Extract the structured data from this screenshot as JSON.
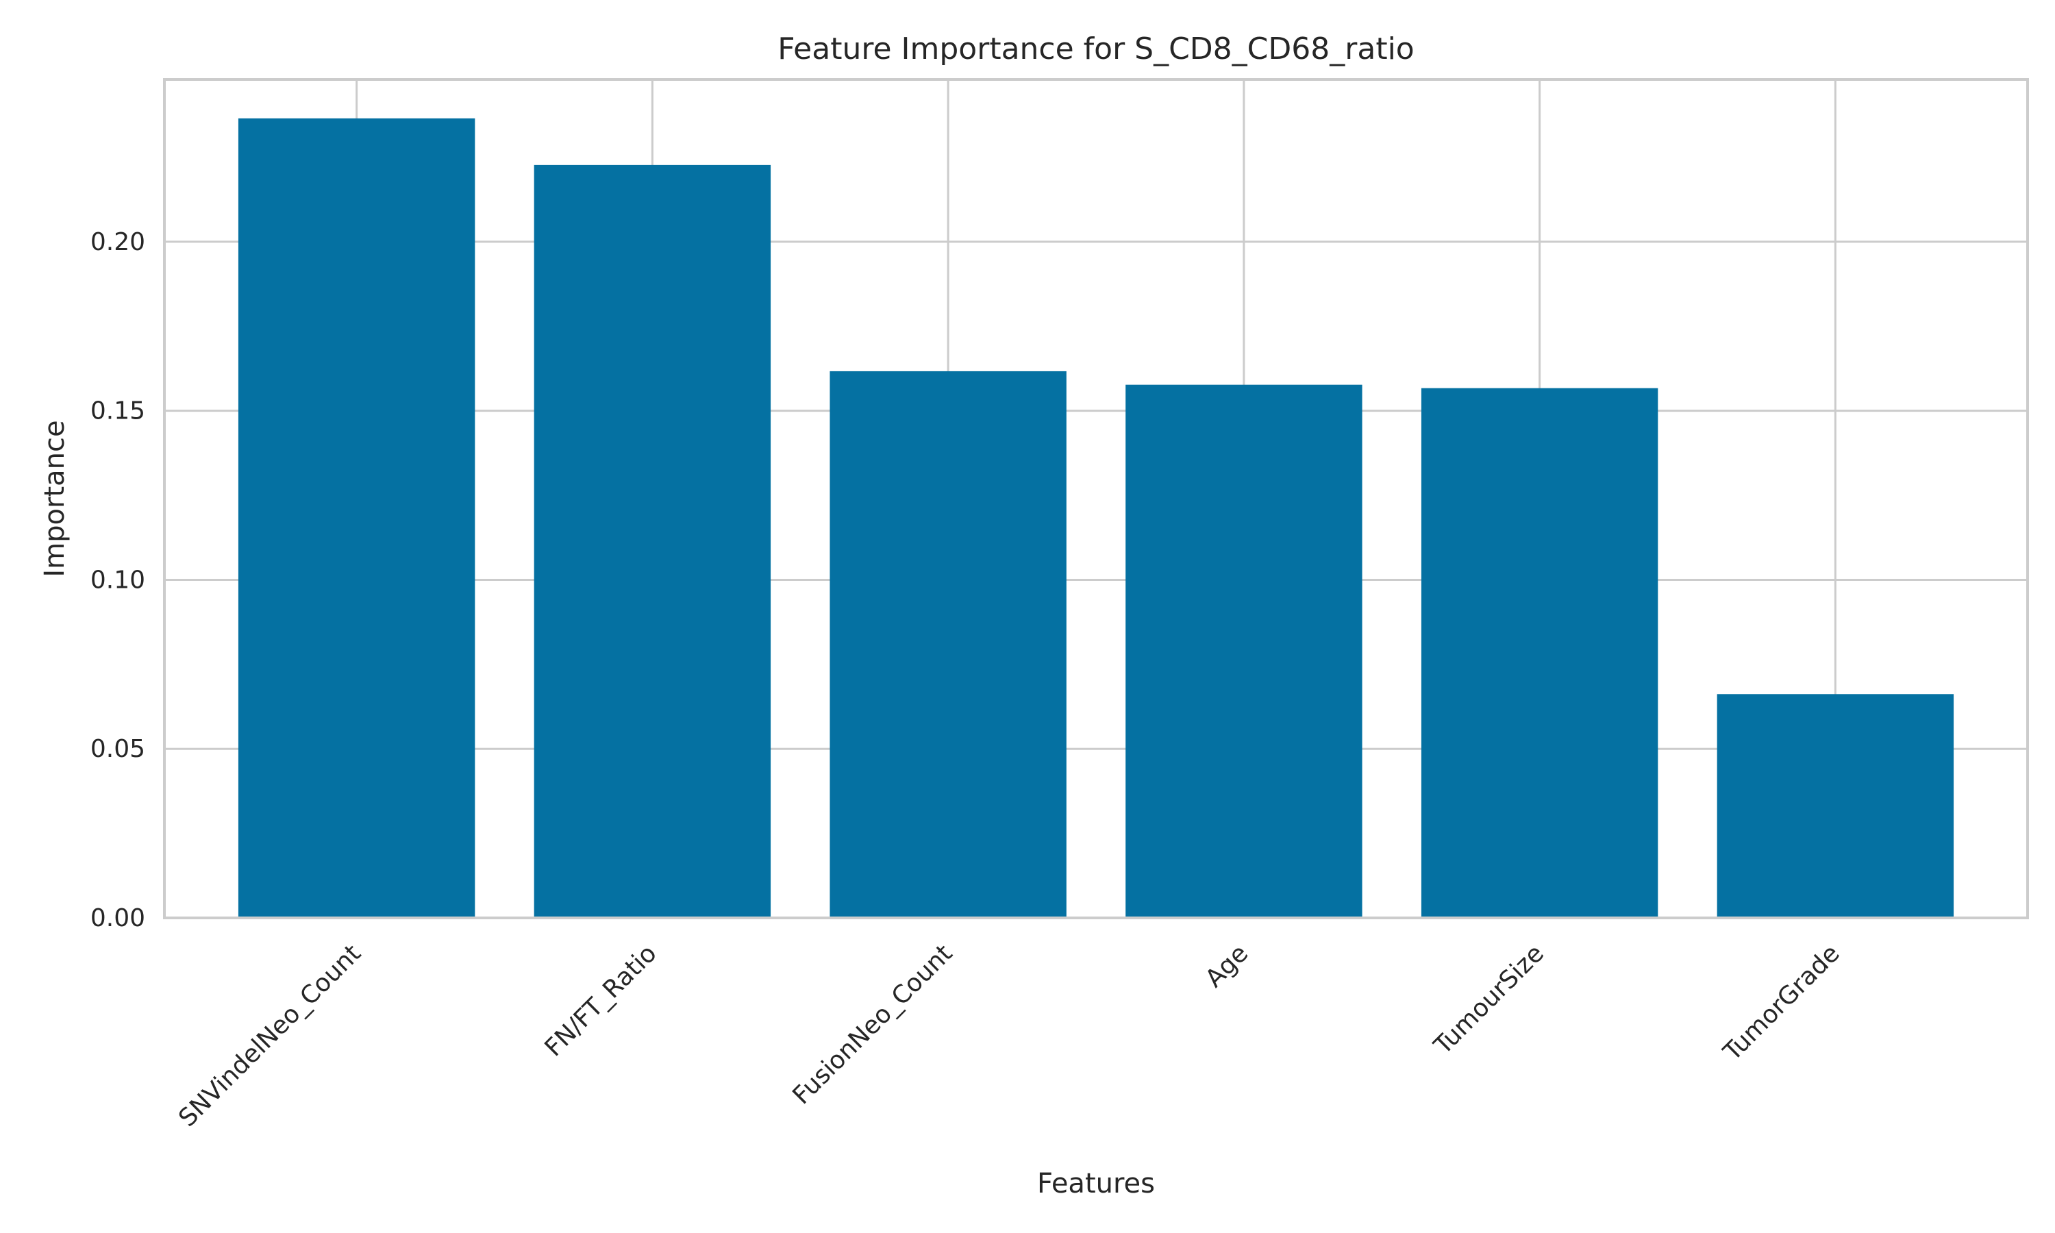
{
  "chart_data": {
    "type": "bar",
    "title": "Feature Importance for S_CD8_CD68_ratio",
    "xlabel": "Features",
    "ylabel": "Importance",
    "categories": [
      "SNVindelNeo_Count",
      "FN/FT_Ratio",
      "FusionNeo_Count",
      "Age",
      "TumourSize",
      "TumorGrade"
    ],
    "values": [
      0.2365,
      0.2227,
      0.1617,
      0.1577,
      0.1567,
      0.0662
    ],
    "ylim": [
      0,
      0.248
    ],
    "yticks": [
      0.0,
      0.05,
      0.1,
      0.15,
      0.2
    ],
    "ytick_labels": [
      "0.00",
      "0.05",
      "0.10",
      "0.15",
      "0.20"
    ],
    "grid": true,
    "legend": "none",
    "colors": {
      "bar": "#0571a2",
      "grid": "#cccccc",
      "spine": "#cccccc",
      "text": "#262626",
      "background": "#ffffff"
    }
  }
}
